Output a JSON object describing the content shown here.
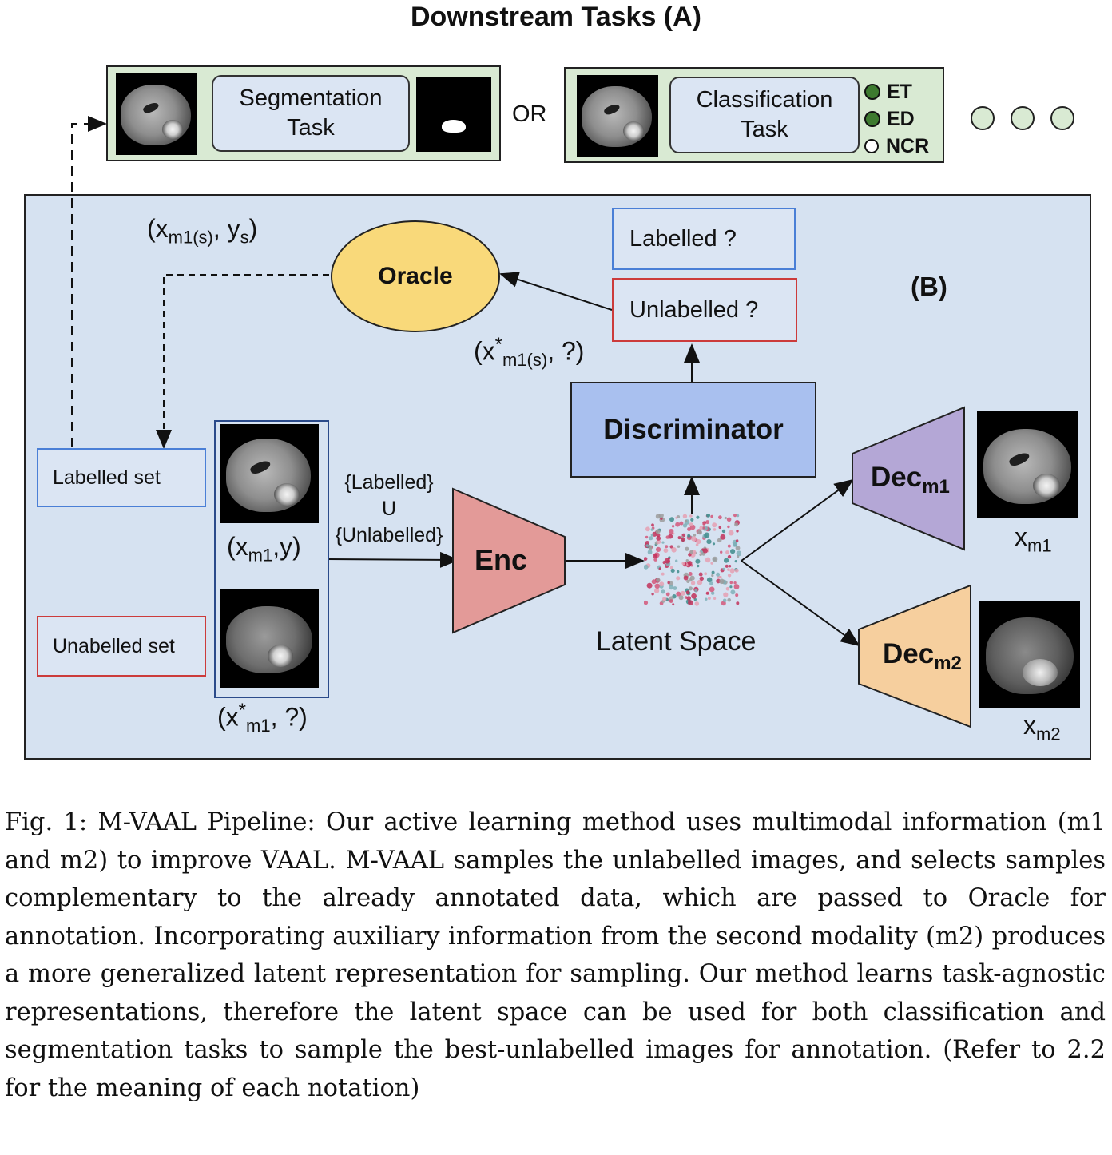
{
  "figure": {
    "title_a": "Downstream Tasks (A)",
    "label_b": "(B)",
    "segmentation_task": [
      "Segmentation",
      "Task"
    ],
    "or_text": "OR",
    "classification_task": [
      "Classification",
      "Task"
    ],
    "class_labels": [
      {
        "label": "ET",
        "filled": true
      },
      {
        "label": "ED",
        "filled": true
      },
      {
        "label": "NCR",
        "filled": false
      }
    ],
    "oracle": "Oracle",
    "oracle_input": {
      "main": "(x",
      "sup": "*",
      "sub": "m1(s)",
      "tail": ", ?)"
    },
    "oracle_output": {
      "main": "(x",
      "sub": "m1(s)",
      "mid": ", y",
      "sub2": "s",
      "tail": ")"
    },
    "labelled_q": "Labelled ?",
    "unlabelled_q": "Unlabelled ?",
    "discriminator": "Discriminator",
    "labelled_set": "Labelled set",
    "unlabelled_set": "Unabelled set",
    "xm1y": {
      "main": "(x",
      "sub": "m1",
      "tail": ",y)"
    },
    "xstar_m1": {
      "main": "(x",
      "sup": "*",
      "sub": "m1",
      "tail": ", ?)"
    },
    "union_text": [
      "{Labelled}",
      "U",
      "{Unlabelled}"
    ],
    "enc": "Enc",
    "latent_space": "Latent Space",
    "dec_m1": {
      "main": "Dec",
      "sub": "m1"
    },
    "dec_m2": {
      "main": "Dec",
      "sub": "m2"
    },
    "x_m1": {
      "main": "x",
      "sub": "m1"
    },
    "x_m2": {
      "main": "x",
      "sub": "m2"
    },
    "colors": {
      "panel_green": "#d9ead3",
      "panel_blue": "#d6e2f1",
      "oracle": "#f9d97a",
      "discriminator": "#a9c0ef",
      "enc": "#e39a98",
      "dec_m1": "#b4a7d6",
      "dec_m2": "#f6cf9e",
      "labelled_border": "#4a7fd6",
      "unlabelled_border": "#cc3b3b"
    }
  },
  "caption": "Fig. 1: M-VAAL Pipeline: Our active learning method uses multimodal information (m1 and m2) to improve VAAL. M-VAAL samples the unlabelled images, and selects samples complementary to the already annotated data, which are passed to Oracle for annotation. Incorporating auxiliary information from the second modality (m2) produces a more generalized latent representation for sampling. Our method learns task-agnostic representations, therefore the latent space can be used for both classification and segmentation tasks to sample the best-unlabelled images for annotation. (Refer to 2.2 for the meaning of each notation)"
}
